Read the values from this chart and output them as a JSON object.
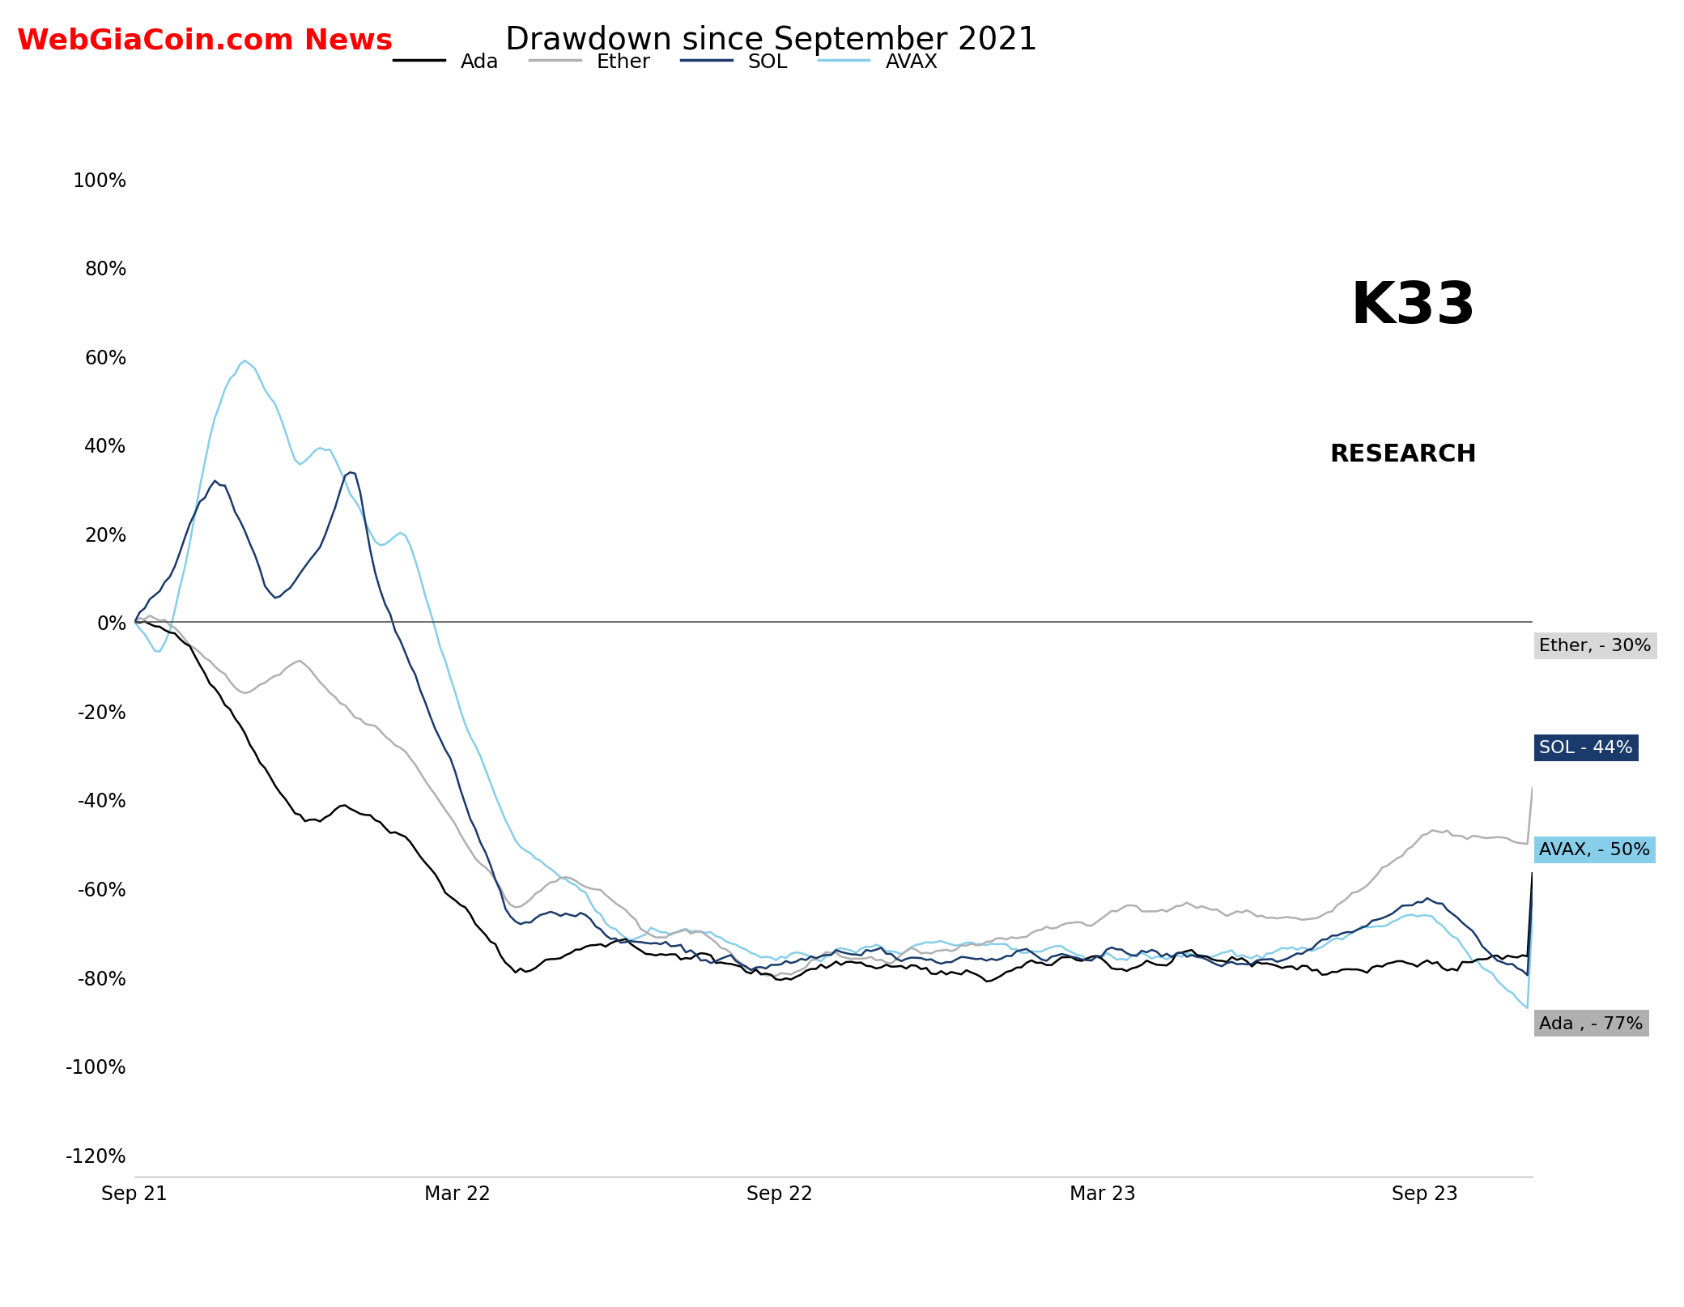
{
  "title": "Drawdown since September 2021",
  "watermark": "WebGiaCoin.com News",
  "background_color": "#ffffff",
  "header_bg": "#e8e8e8",
  "series": {
    "Ada": {
      "color": "#000000",
      "linewidth": 1.8,
      "final_label": "Ada , - 77%",
      "label_bg": "#b0b0b0",
      "label_color": "#000000"
    },
    "Ether": {
      "color": "#b0b0b0",
      "linewidth": 1.8,
      "final_label": "Ether, - 30%",
      "label_bg": "#d8d8d8",
      "label_color": "#000000"
    },
    "SOL": {
      "color": "#1a3a6b",
      "linewidth": 1.8,
      "final_label": "SOL - 44%",
      "label_bg": "#1a3a6b",
      "label_color": "#ffffff"
    },
    "AVAX": {
      "color": "#87ceeb",
      "linewidth": 1.8,
      "final_label": "AVAX, - 50%",
      "label_bg": "#87ceeb",
      "label_color": "#000000"
    }
  },
  "ylim": [
    -1.25,
    1.05
  ],
  "yticks": [
    -1.2,
    -1.0,
    -0.8,
    -0.6,
    -0.4,
    -0.2,
    0.0,
    0.2,
    0.4,
    0.6,
    0.8,
    1.0
  ],
  "xtick_labels": [
    "Sep 21",
    "Mar 22",
    "Sep 22",
    "Mar 23",
    "Sep 23"
  ],
  "xtick_positions": [
    0,
    6,
    12,
    18,
    24
  ],
  "end_labels": [
    {
      "text": "Ether, - 30%",
      "y_ax": 0.52,
      "bg": "#d8d8d8",
      "fg": "#000000"
    },
    {
      "text": "SOL - 44%",
      "y_ax": 0.42,
      "bg": "#1a3a6b",
      "fg": "#ffffff"
    },
    {
      "text": "AVAX, - 50%",
      "y_ax": 0.32,
      "bg": "#87ceeb",
      "fg": "#000000"
    },
    {
      "text": "Ada , - 77%",
      "y_ax": 0.15,
      "bg": "#b0b0b0",
      "fg": "#000000"
    }
  ]
}
